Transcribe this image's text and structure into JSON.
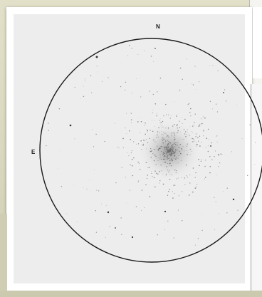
{
  "sketch": {
    "north_label": "N",
    "east_label": "E"
  },
  "colors": {
    "background": "#d7d6bf",
    "paper": "#ffffff",
    "field": "#ededed",
    "ink": "#1a1a1a"
  }
}
